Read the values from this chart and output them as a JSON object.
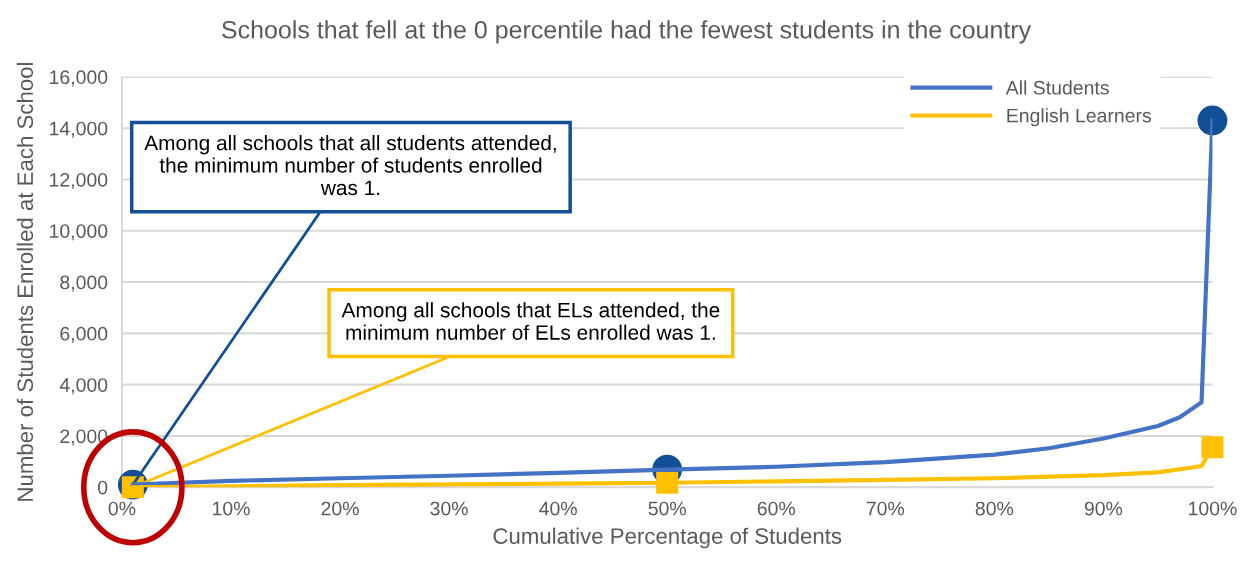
{
  "chart_data": {
    "type": "line",
    "title": "Schools that fell at the 0 percentile had the fewest students in the country",
    "xlabel": "Cumulative Percentage of Students",
    "ylabel": "Number of Students Enrolled at Each School",
    "xlim": [
      0,
      100
    ],
    "ylim": [
      0,
      16000
    ],
    "xticks": [
      {
        "value": 0,
        "label": "0%"
      },
      {
        "value": 10,
        "label": "10%"
      },
      {
        "value": 20,
        "label": "20%"
      },
      {
        "value": 30,
        "label": "30%"
      },
      {
        "value": 40,
        "label": "40%"
      },
      {
        "value": 50,
        "label": "50%"
      },
      {
        "value": 60,
        "label": "60%"
      },
      {
        "value": 70,
        "label": "70%"
      },
      {
        "value": 80,
        "label": "80%"
      },
      {
        "value": 90,
        "label": "90%"
      },
      {
        "value": 100,
        "label": "100%"
      }
    ],
    "yticks": [
      0,
      {
        "value": 2000,
        "label": "2,000"
      },
      {
        "value": 4000,
        "label": "4,000"
      },
      {
        "value": 6000,
        "label": "6,000"
      },
      {
        "value": 8000,
        "label": "8,000"
      },
      {
        "value": 10000,
        "label": "10,000"
      },
      {
        "value": 12000,
        "label": "12,000"
      },
      {
        "value": 14000,
        "label": "14,000"
      },
      {
        "value": 16000,
        "label": "16,000"
      }
    ],
    "grid": "y",
    "legend": "top right",
    "marker": "none",
    "line_style": "solid",
    "series": [
      {
        "name": "All Students",
        "color": "#4472c4",
        "x": [
          1,
          10,
          20,
          30,
          40,
          50,
          60,
          70,
          80,
          85,
          90,
          95,
          97,
          99,
          100
        ],
        "values": [
          100,
          250,
          350,
          450,
          560,
          690,
          800,
          980,
          1270,
          1520,
          1900,
          2390,
          2730,
          3310,
          14300
        ]
      },
      {
        "name": "English Learners",
        "color": "#ffc000",
        "x": [
          1,
          10,
          20,
          30,
          40,
          50,
          60,
          70,
          80,
          90,
          95,
          98,
          99,
          100
        ],
        "values": [
          0,
          40,
          80,
          110,
          140,
          175,
          230,
          290,
          350,
          470,
          580,
          760,
          830,
          1560
        ]
      },
      {
        "type": "scatter",
        "marker": "circle",
        "color": "#134f96",
        "x": [
          1,
          50,
          100
        ],
        "values": [
          100,
          690,
          14300
        ]
      },
      {
        "type": "scatter",
        "marker": "square",
        "color": "#ffc000",
        "x": [
          1,
          50,
          100
        ],
        "values": [
          0,
          175,
          1560
        ]
      }
    ],
    "annotations": [
      {
        "text": "Among all schools that all students attended, the minimum number of students enrolled was 1.",
        "x": 1,
        "y": 100
      },
      {
        "text": "Among all schools that ELs attended, the minimum number of ELs enrolled was 1.",
        "x": 1,
        "y": 0
      }
    ]
  }
}
